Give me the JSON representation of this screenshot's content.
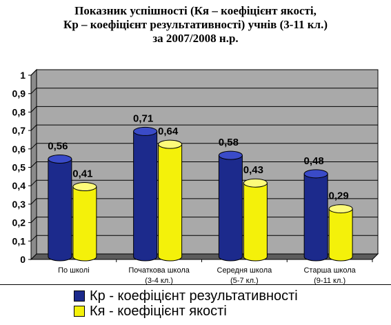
{
  "title_lines": [
    "Показник успішності (Кя – коефіцієнт якості,",
    "Кр – коефіцієнт результативності) учнів (3-11 кл.)",
    "за 2007/2008 н.р."
  ],
  "colors": {
    "kr": "#1c2a8c",
    "kr_top": "#3a4bc8",
    "kya": "#f4f10a",
    "kya_top": "#fdfb7a",
    "wall": "#a9a9a9",
    "floor": "#5c5c5c"
  },
  "chart_data": {
    "type": "bar",
    "title": "Показник успішності (Кя – коефіцієнт якості, Кр – коефіцієнт результативності) учнів (3-11 кл.) за 2007/2008 н.р.",
    "categories": [
      [
        "По школі"
      ],
      [
        "Початкова школа",
        "(3-4 кл.)"
      ],
      [
        "Середня школа",
        "(5-7 кл.)"
      ],
      [
        "Старша школа",
        "(9-11 кл.)"
      ]
    ],
    "series": [
      {
        "name": "Кр - коефіцієнт результативності",
        "values": [
          0.56,
          0.71,
          0.58,
          0.48
        ],
        "labels": [
          "0,56",
          "0,71",
          "0,58",
          "0,48"
        ]
      },
      {
        "name": "Кя - коефіцієнт якості",
        "values": [
          0.41,
          0.64,
          0.43,
          0.29
        ],
        "labels": [
          "0,41",
          "0,64",
          "0,43",
          "0,29"
        ]
      }
    ],
    "yticks": [
      "0",
      "0,1",
      "0,2",
      "0,3",
      "0,4",
      "0,5",
      "0,6",
      "0,7",
      "0,8",
      "0,9",
      "1"
    ],
    "ylim": [
      0,
      1
    ],
    "grid": true,
    "legend_position": "bottom"
  }
}
